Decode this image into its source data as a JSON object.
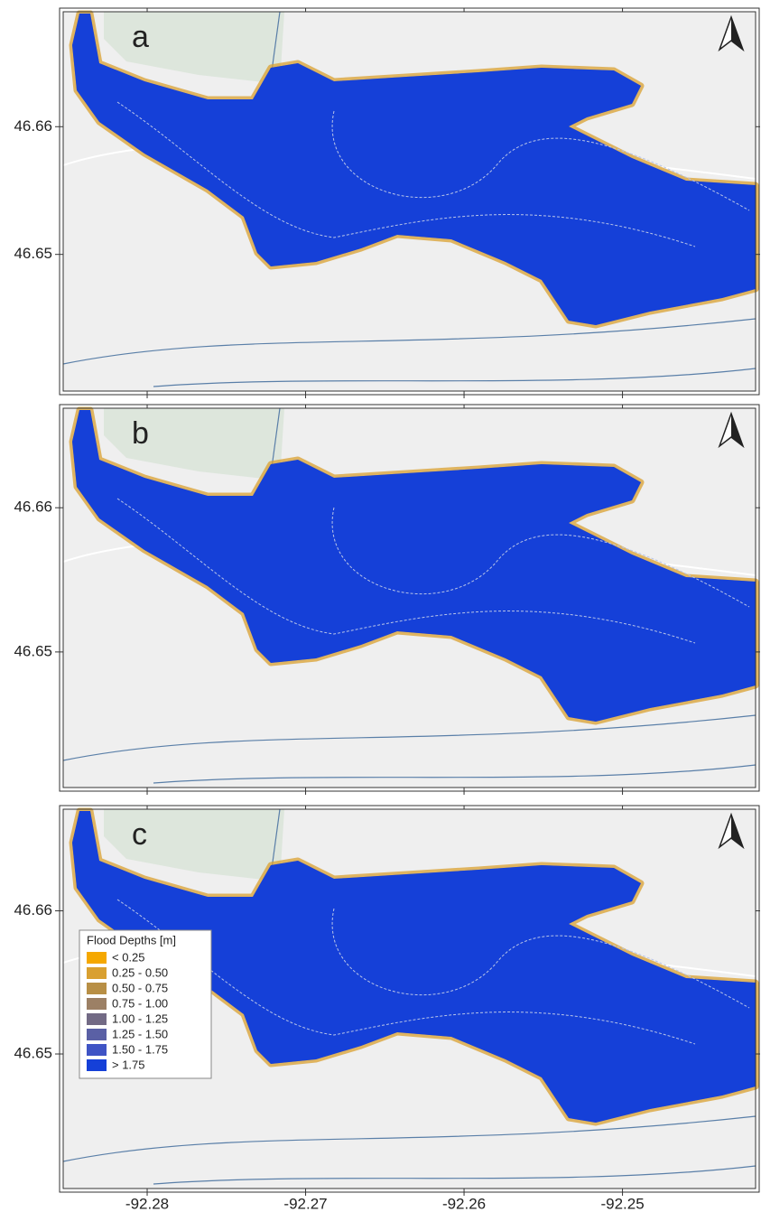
{
  "xlim": [
    -92.2853,
    -92.2416
  ],
  "xticks": [
    -92.28,
    -92.27,
    -92.26,
    -92.25
  ],
  "panels": [
    {
      "label": "a",
      "ylim": [
        46.6393,
        46.669
      ],
      "yticks": [
        46.66,
        46.65
      ]
    },
    {
      "label": "b",
      "ylim": [
        46.6406,
        46.6669
      ],
      "yticks": [
        46.66,
        46.65
      ]
    },
    {
      "label": "c",
      "ylim": [
        46.6406,
        46.6671
      ],
      "yticks": [
        46.66,
        46.65
      ]
    }
  ],
  "legend": {
    "title": "Flood Depths [m]",
    "items": [
      {
        "label": "< 0.25",
        "color": "#f5a800"
      },
      {
        "label": "0.25 - 0.50",
        "color": "#d9a030"
      },
      {
        "label": "0.50 - 0.75",
        "color": "#b88f45"
      },
      {
        "label": "0.75 - 1.00",
        "color": "#9c8065"
      },
      {
        "label": "1.00 - 1.25",
        "color": "#726a85"
      },
      {
        "label": "1.25 - 1.50",
        "color": "#5a60a5"
      },
      {
        "label": "1.50 - 1.75",
        "color": "#3f54c5"
      },
      {
        "label": "> 1.75",
        "color": "#1540d8"
      }
    ]
  }
}
